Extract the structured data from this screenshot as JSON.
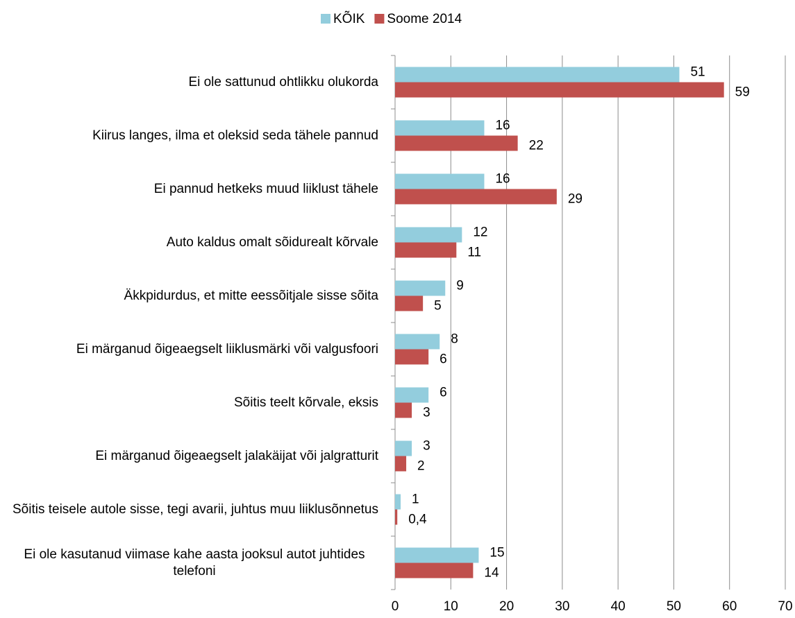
{
  "chart_data": {
    "type": "barh",
    "categories": [
      "Ei ole sattunud ohtlikku olukorda",
      "Kiirus langes, ilma et oleksid seda tähele pannud",
      "Ei pannud hetkeks muud liiklust tähele",
      "Auto kaldus omalt sõidurealt kõrvale",
      "Äkkpidurdus, et mitte eessõitjale sisse sõita",
      "Ei märganud õigeaegselt liiklusmärki või valgusfoori",
      "Sõitis teelt kõrvale, eksis",
      "Ei märganud õigeaegselt jalakäijat või jalgratturit",
      "Sõitis teisele autole sisse, tegi avarii, juhtus muu liiklusõnnetus",
      "Ei ole kasutanud viimase kahe aasta jooksul autot juhtides telefoni"
    ],
    "series": [
      {
        "name": "KÕIK",
        "color": "#93cddd",
        "values": [
          51,
          16,
          16,
          12,
          9,
          8,
          6,
          3,
          1,
          15
        ]
      },
      {
        "name": "Soome 2014",
        "color": "#c0504d",
        "values": [
          59,
          22,
          29,
          11,
          5,
          6,
          3,
          2,
          0.4,
          14
        ],
        "value_labels": [
          "59",
          "22",
          "29",
          "11",
          "5",
          "6",
          "3",
          "2",
          "0,4",
          "14"
        ]
      }
    ],
    "xlim": [
      0,
      70
    ],
    "xticks": [
      0,
      10,
      20,
      30,
      40,
      50,
      60,
      70
    ],
    "grid": true,
    "legend": "top"
  }
}
